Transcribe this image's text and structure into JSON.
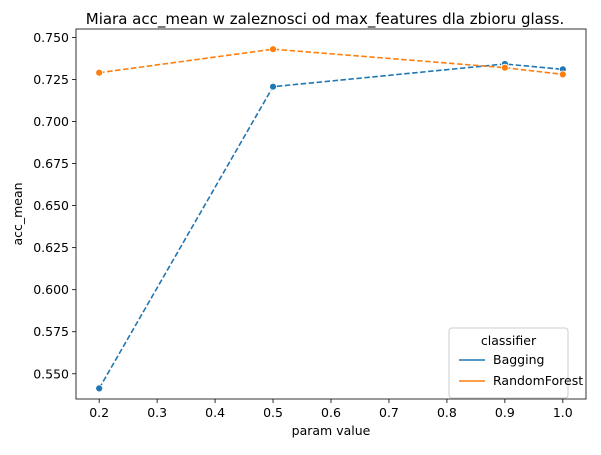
{
  "chart_data": {
    "type": "line",
    "title": "Miara acc_mean w zaleznosci od max_features dla zbioru glass.",
    "xlabel": "param value",
    "ylabel": "acc_mean",
    "x": [
      0.2,
      0.5,
      0.9,
      1.0
    ],
    "xlim": [
      0.16,
      1.04
    ],
    "ylim": [
      0.535,
      0.755
    ],
    "x_ticks": [
      0.2,
      0.3,
      0.4,
      0.5,
      0.6,
      0.7,
      0.8,
      0.9,
      1.0
    ],
    "x_tick_labels": [
      "0.2",
      "0.3",
      "0.4",
      "0.5",
      "0.6",
      "0.7",
      "0.8",
      "0.9",
      "1.0"
    ],
    "y_ticks": [
      0.55,
      0.575,
      0.6,
      0.625,
      0.65,
      0.675,
      0.7,
      0.725,
      0.75
    ],
    "y_tick_labels": [
      "0.550",
      "0.575",
      "0.600",
      "0.625",
      "0.650",
      "0.675",
      "0.700",
      "0.725",
      "0.750"
    ],
    "grid": false,
    "legend": {
      "title": "classifier",
      "placement": "lower-right"
    },
    "series": [
      {
        "name": "Bagging",
        "color": "#1f77b4",
        "values": [
          0.5413,
          0.7207,
          0.7342,
          0.731
        ]
      },
      {
        "name": "RandomForest",
        "color": "#ff7f0e",
        "values": [
          0.729,
          0.743,
          0.732,
          0.728
        ]
      }
    ]
  }
}
